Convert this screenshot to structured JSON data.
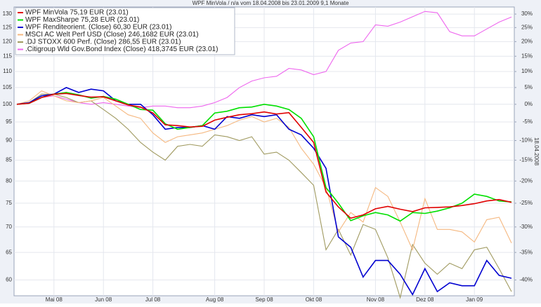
{
  "chart_data": {
    "type": "line",
    "title": "WPF MinVola / n/a vom 18.04.2008 bis 23.01.2009 9,1 Monate",
    "y2label": "18.04.2008",
    "log_scale": true,
    "grid": true,
    "legend": "top-left",
    "categories": [
      null,
      null,
      null,
      "Mai 08",
      null,
      null,
      null,
      "Jun 08",
      null,
      null,
      null,
      "Jul 08",
      null,
      null,
      null,
      null,
      "Aug 08",
      null,
      null,
      null,
      "Sep 08",
      null,
      null,
      null,
      "Okt 08",
      null,
      null,
      null,
      null,
      "Nov 08",
      null,
      null,
      null,
      "Dez 08",
      null,
      null,
      null,
      "Jan 09",
      null,
      null,
      null
    ],
    "ylim": [
      57.3,
      132.7
    ],
    "yticks": [
      60,
      65,
      70,
      75,
      80,
      85,
      90,
      95,
      100,
      105,
      110,
      115,
      120,
      125,
      130
    ],
    "y2lim": [
      -42.7,
      32.7
    ],
    "y2ticks": [
      {
        "value": 30,
        "label": "30%"
      },
      {
        "value": 25,
        "label": "25%"
      },
      {
        "value": 20,
        "label": "20%"
      },
      {
        "value": 15,
        "label": "15%"
      },
      {
        "value": 10,
        "label": "10%"
      },
      {
        "value": 5,
        "label": "5%"
      },
      {
        "value": 0,
        "label": "0%"
      },
      {
        "value": -5,
        "label": "-5%"
      },
      {
        "value": -10,
        "label": "-10%"
      },
      {
        "value": -15,
        "label": "-15%"
      },
      {
        "value": -20,
        "label": "-20%"
      },
      {
        "value": -25,
        "label": "-25%"
      },
      {
        "value": -30,
        "label": "-30%"
      },
      {
        "value": -35,
        "label": "-35%"
      },
      {
        "value": -40,
        "label": "-40%"
      }
    ],
    "series": [
      {
        "name": "WPF MinVola 75,19 EUR (23.01)",
        "color": "#e00000",
        "values": [
          100,
          100.3,
          102,
          103,
          103.2,
          102.6,
          102.1,
          102.2,
          101,
          99.8,
          99.2,
          97.5,
          94.2,
          94,
          93.6,
          93.8,
          95.5,
          96.3,
          97,
          97.3,
          97.8,
          97.2,
          97.6,
          93.5,
          89.5,
          77.5,
          74.2,
          71.8,
          72.5,
          73.8,
          74.3,
          73.7,
          73.2,
          74,
          74.1,
          74.2,
          74.5,
          74.9,
          75.5,
          75.8,
          75.19
        ]
      },
      {
        "name": "WPF MaxSharpe 75,28 EUR (23.01)",
        "color": "#00e000",
        "values": [
          100,
          100.3,
          102,
          103,
          103.5,
          102.8,
          101.8,
          102.3,
          101.5,
          100,
          98.5,
          98.3,
          94.5,
          93,
          93.5,
          94,
          97.5,
          98,
          99,
          99.2,
          100,
          99.5,
          98.5,
          96,
          91,
          78.5,
          75,
          71.3,
          72.3,
          73,
          72.5,
          71.2,
          73,
          72.8,
          73.3,
          74,
          75,
          77,
          76.5,
          75.5,
          75.28
        ]
      },
      {
        "name": "WPF Renditeorient. (Close) 60,30 EUR (23.01)",
        "color": "#0000d0",
        "values": [
          100,
          100.5,
          102.5,
          103,
          105,
          103.5,
          104.5,
          104,
          101,
          100,
          100,
          97,
          93,
          93.5,
          93.5,
          94,
          93,
          96.5,
          96,
          97,
          96.5,
          97,
          93,
          91.5,
          88,
          83,
          68,
          66,
          60.5,
          63.5,
          63.5,
          61,
          57.5,
          62,
          58,
          59.5,
          59,
          59,
          63.5,
          60.8,
          60.3
        ]
      },
      {
        "name": "MSCI AC Welt Perf USD (Close) 246,1682 EUR (23.01)",
        "color": "#f5b880",
        "values": [
          100,
          101,
          104,
          102.5,
          101,
          100.5,
          101,
          102,
          99.5,
          97,
          96,
          92,
          89.5,
          91,
          91.5,
          92,
          93,
          94,
          95.5,
          96.5,
          95,
          96,
          93.5,
          88,
          84,
          78.5,
          69,
          73,
          71,
          78.5,
          76.5,
          71,
          65.5,
          76,
          69.5,
          69.5,
          69,
          67,
          71.5,
          72,
          66.8
        ]
      },
      {
        "name": ".DJ STOXX 600 Perf. (Close) 286,55 EUR (23.01)",
        "color": "#a09a60",
        "values": [
          100,
          100.5,
          103,
          103,
          102,
          100.5,
          101,
          98.5,
          96,
          93,
          89.5,
          87,
          85,
          88.5,
          89,
          88.5,
          91.5,
          91,
          90,
          91,
          86.5,
          87,
          85,
          82,
          79,
          65.5,
          69.5,
          64.5,
          70.5,
          69.5,
          64,
          57,
          66.5,
          63,
          61,
          63,
          62,
          65.5,
          66,
          62,
          58
        ]
      },
      {
        "name": ".Citigroup Wld Gov.Bond Index (Close) 418,3745 EUR (23.01)",
        "color": "#ee66ee",
        "values": [
          100,
          100.5,
          102,
          102.5,
          101.5,
          100.5,
          100,
          100.5,
          100,
          99.5,
          99,
          99.5,
          99.5,
          99,
          99,
          99.5,
          100.5,
          102,
          105,
          107,
          108,
          108.5,
          111,
          110.5,
          109,
          110,
          117,
          119.5,
          120,
          126,
          125.5,
          127,
          129,
          131,
          130.5,
          123.5,
          122,
          122,
          124.5,
          127,
          128.9
        ]
      }
    ]
  }
}
